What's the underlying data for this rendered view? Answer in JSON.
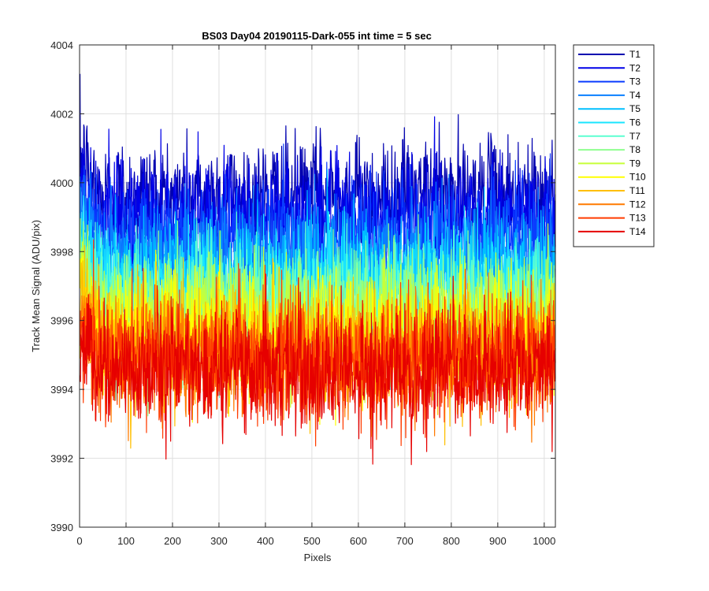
{
  "chart_data": {
    "type": "line",
    "title": "BS03 Day04 20190115-Dark-055 int time = 5 sec",
    "xlabel": "Pixels",
    "ylabel": "Track Mean Signal (ADU/pix)",
    "xlim": [
      0,
      1024
    ],
    "ylim": [
      3990,
      4004
    ],
    "xticks": [
      0,
      100,
      200,
      300,
      400,
      500,
      600,
      700,
      800,
      900,
      1000
    ],
    "yticks": [
      3990,
      3992,
      3994,
      3996,
      3998,
      4000,
      4002,
      4004
    ],
    "xtick_labels": [
      "0",
      "100",
      "200",
      "300",
      "400",
      "500",
      "600",
      "700",
      "800",
      "900",
      "1000"
    ],
    "ytick_labels": [
      "3990",
      "3992",
      "3994",
      "3996",
      "3998",
      "4000",
      "4002",
      "4004"
    ],
    "grid": true,
    "legend_position": "outside-top-right",
    "x_points": 1024,
    "series": [
      {
        "name": "T1",
        "color": "#0000b0",
        "mean": 3999.6,
        "noise_std": 0.85
      },
      {
        "name": "T2",
        "color": "#0000e8",
        "mean": 3999.0,
        "noise_std": 0.85
      },
      {
        "name": "T3",
        "color": "#0a3cff",
        "mean": 3998.4,
        "noise_std": 0.85
      },
      {
        "name": "T4",
        "color": "#0a7fff",
        "mean": 3997.8,
        "noise_std": 0.85
      },
      {
        "name": "T5",
        "color": "#00bfff",
        "mean": 3997.3,
        "noise_std": 0.85
      },
      {
        "name": "T6",
        "color": "#1ae6ff",
        "mean": 3996.9,
        "noise_std": 0.85
      },
      {
        "name": "T7",
        "color": "#5cffd1",
        "mean": 3996.6,
        "noise_std": 0.85
      },
      {
        "name": "T8",
        "color": "#8fff8f",
        "mean": 3996.3,
        "noise_std": 0.85
      },
      {
        "name": "T9",
        "color": "#c7ff38",
        "mean": 3996.0,
        "noise_std": 0.85
      },
      {
        "name": "T10",
        "color": "#ffff00",
        "mean": 3995.7,
        "noise_std": 0.85
      },
      {
        "name": "T11",
        "color": "#ffbf00",
        "mean": 3995.3,
        "noise_std": 0.85
      },
      {
        "name": "T12",
        "color": "#ff7a00",
        "mean": 3995.0,
        "noise_std": 0.85
      },
      {
        "name": "T13",
        "color": "#ff3c00",
        "mean": 3994.8,
        "noise_std": 0.85
      },
      {
        "name": "T14",
        "color": "#e60000",
        "mean": 3994.6,
        "noise_std": 0.85
      }
    ]
  }
}
